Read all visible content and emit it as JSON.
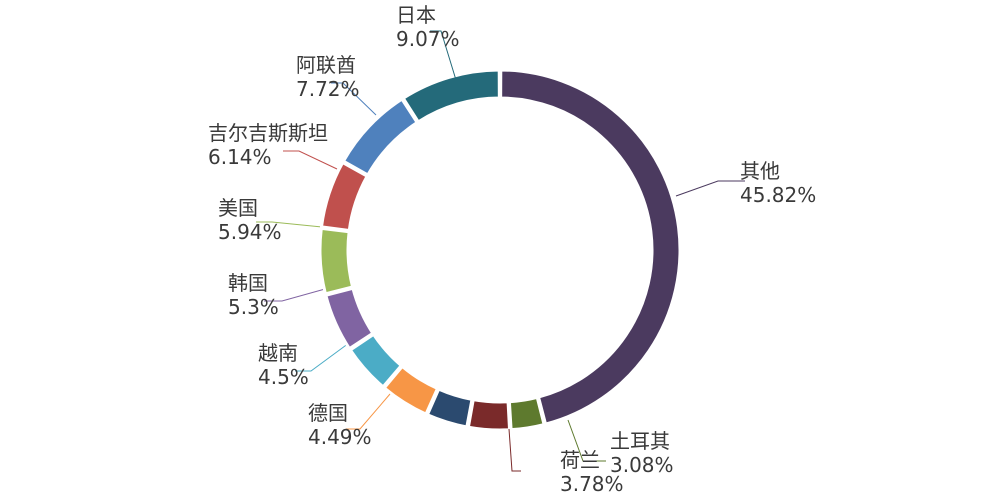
{
  "chart_data": {
    "type": "pie",
    "donut": true,
    "slices": [
      {
        "label": "其他",
        "value": 45.82,
        "display": "45.82%",
        "color": "#4b3a5f"
      },
      {
        "label": "土耳其",
        "value": 3.08,
        "display": "3.08%",
        "color": "#5e7a2e"
      },
      {
        "label": "荷兰",
        "value": 3.78,
        "display": "3.78%",
        "color": "#7a2a2a"
      },
      {
        "label": "",
        "value": 3.78,
        "display": "",
        "color": "#2b4a6f"
      },
      {
        "label": "德国",
        "value": 4.49,
        "display": "4.49%",
        "color": "#f79646"
      },
      {
        "label": "越南",
        "value": 4.5,
        "display": "4.5%",
        "color": "#4bacc6"
      },
      {
        "label": "韩国",
        "value": 5.3,
        "display": "5.3%",
        "color": "#8064a2"
      },
      {
        "label": "美国",
        "value": 5.94,
        "display": "5.94%",
        "color": "#9bbb59"
      },
      {
        "label": "吉尔吉斯斯坦",
        "value": 6.14,
        "display": "6.14%",
        "color": "#c0504d"
      },
      {
        "label": "阿联酋",
        "value": 7.72,
        "display": "7.72%",
        "color": "#4f81bd"
      },
      {
        "label": "日本",
        "value": 9.07,
        "display": "9.07%",
        "color": "#246a7a"
      }
    ]
  }
}
